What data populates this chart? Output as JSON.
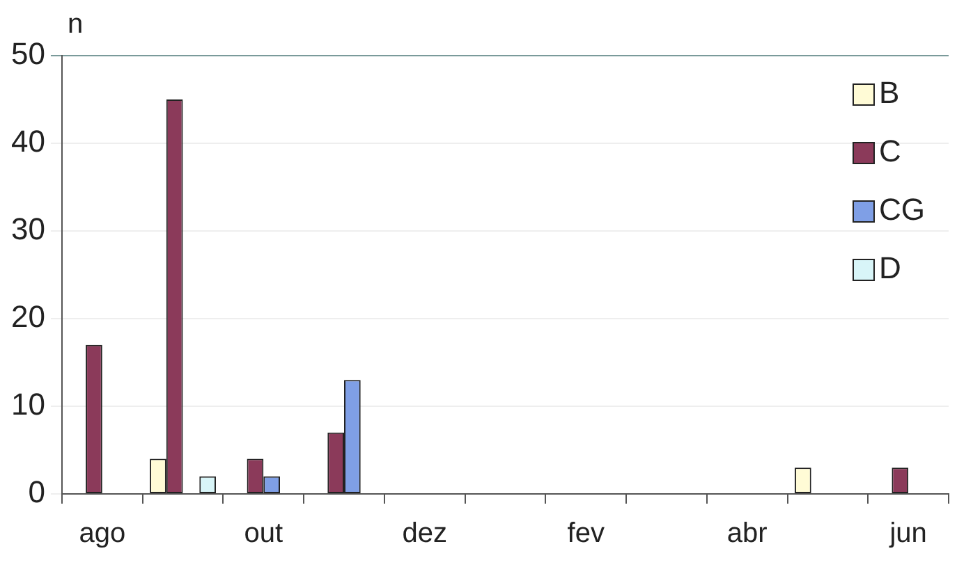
{
  "chart_data": {
    "type": "bar",
    "ylabel": "n",
    "categories": [
      "ago",
      null,
      "out",
      null,
      "dez",
      null,
      "fev",
      null,
      "abr",
      null,
      "jun"
    ],
    "series": [
      {
        "name": "B",
        "color": "#fffbd6",
        "values": [
          0,
          4,
          0,
          0,
          0,
          0,
          0,
          0,
          0,
          3,
          0
        ]
      },
      {
        "name": "C",
        "color": "#8b3a5a",
        "values": [
          17,
          45,
          4,
          7,
          0,
          0,
          0,
          0,
          0,
          0,
          3
        ]
      },
      {
        "name": "CG",
        "color": "#7f9fe6",
        "values": [
          0,
          0,
          2,
          13,
          0,
          0,
          0,
          0,
          0,
          0,
          0
        ]
      },
      {
        "name": "D",
        "color": "#d8f5f8",
        "values": [
          0,
          2,
          0,
          0,
          0,
          0,
          0,
          0,
          0,
          0,
          0
        ]
      }
    ],
    "ylim": [
      0,
      50
    ],
    "yticks": [
      0,
      10,
      20,
      30,
      40,
      50
    ],
    "grid": "y",
    "legend": "top right"
  }
}
